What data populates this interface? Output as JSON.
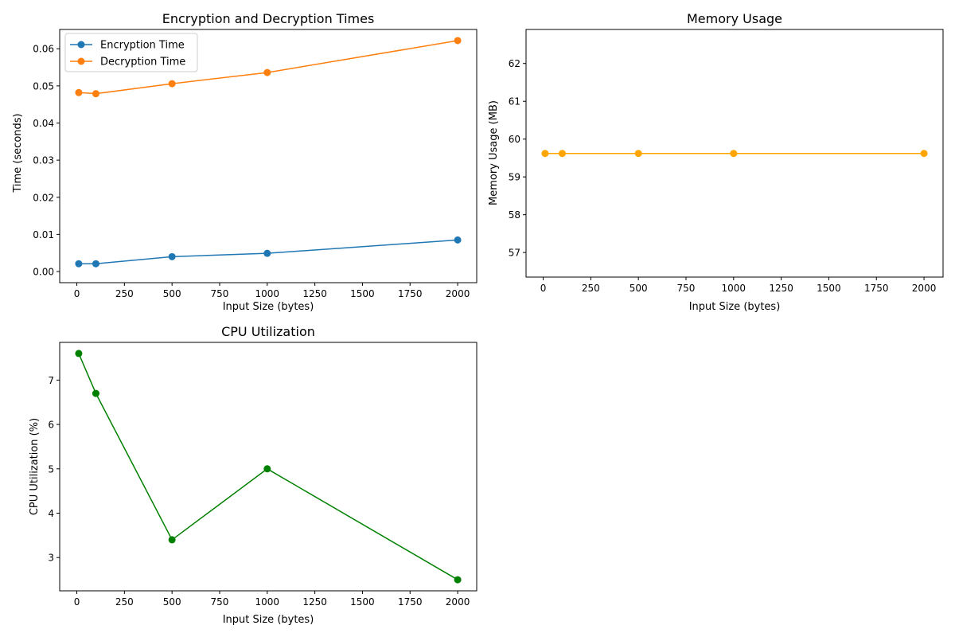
{
  "chart_data": [
    {
      "type": "line",
      "title": "Encryption and Decryption Times",
      "xlabel": "Input Size (bytes)",
      "ylabel": "Time (seconds)",
      "x": [
        10,
        100,
        500,
        1000,
        2000
      ],
      "series": [
        {
          "name": "Encryption Time",
          "color": "#1f77b4",
          "values": [
            0.0021,
            0.0021,
            0.004,
            0.0049,
            0.0085
          ]
        },
        {
          "name": "Decryption Time",
          "color": "#ff7f0e",
          "values": [
            0.0482,
            0.0479,
            0.0506,
            0.0536,
            0.0622
          ]
        }
      ],
      "xlim": [
        -90,
        2100
      ],
      "ylim": [
        -0.003,
        0.0652
      ],
      "xticks": [
        0,
        250,
        500,
        750,
        1000,
        1250,
        1500,
        1750,
        2000
      ],
      "yticks": [
        0.0,
        0.01,
        0.02,
        0.03,
        0.04,
        0.05,
        0.06
      ],
      "ytick_decimals": 2,
      "legend": "top-left",
      "grid": false
    },
    {
      "type": "line",
      "title": "Memory Usage",
      "xlabel": "Input Size (bytes)",
      "ylabel": "Memory Usage (MB)",
      "x": [
        10,
        100,
        500,
        1000,
        2000
      ],
      "series": [
        {
          "color": "#ffa500",
          "values": [
            59.62,
            59.62,
            59.62,
            59.62,
            59.62
          ]
        }
      ],
      "xlim": [
        -90,
        2100
      ],
      "ylim": [
        56.35,
        62.9
      ],
      "xticks": [
        0,
        250,
        500,
        750,
        1000,
        1250,
        1500,
        1750,
        2000
      ],
      "yticks": [
        57,
        58,
        59,
        60,
        61,
        62
      ],
      "ytick_decimals": 0,
      "grid": false
    },
    {
      "type": "line",
      "title": "CPU Utilization",
      "xlabel": "Input Size (bytes)",
      "ylabel": "CPU Utilization (%)",
      "x": [
        10,
        100,
        500,
        1000,
        2000
      ],
      "series": [
        {
          "color": "#008000",
          "values": [
            7.6,
            6.7,
            3.4,
            5.0,
            2.5
          ]
        }
      ],
      "xlim": [
        -90,
        2100
      ],
      "ylim": [
        2.25,
        7.85
      ],
      "xticks": [
        0,
        250,
        500,
        750,
        1000,
        1250,
        1500,
        1750,
        2000
      ],
      "yticks": [
        3,
        4,
        5,
        6,
        7
      ],
      "ytick_decimals": 0,
      "grid": false
    }
  ]
}
